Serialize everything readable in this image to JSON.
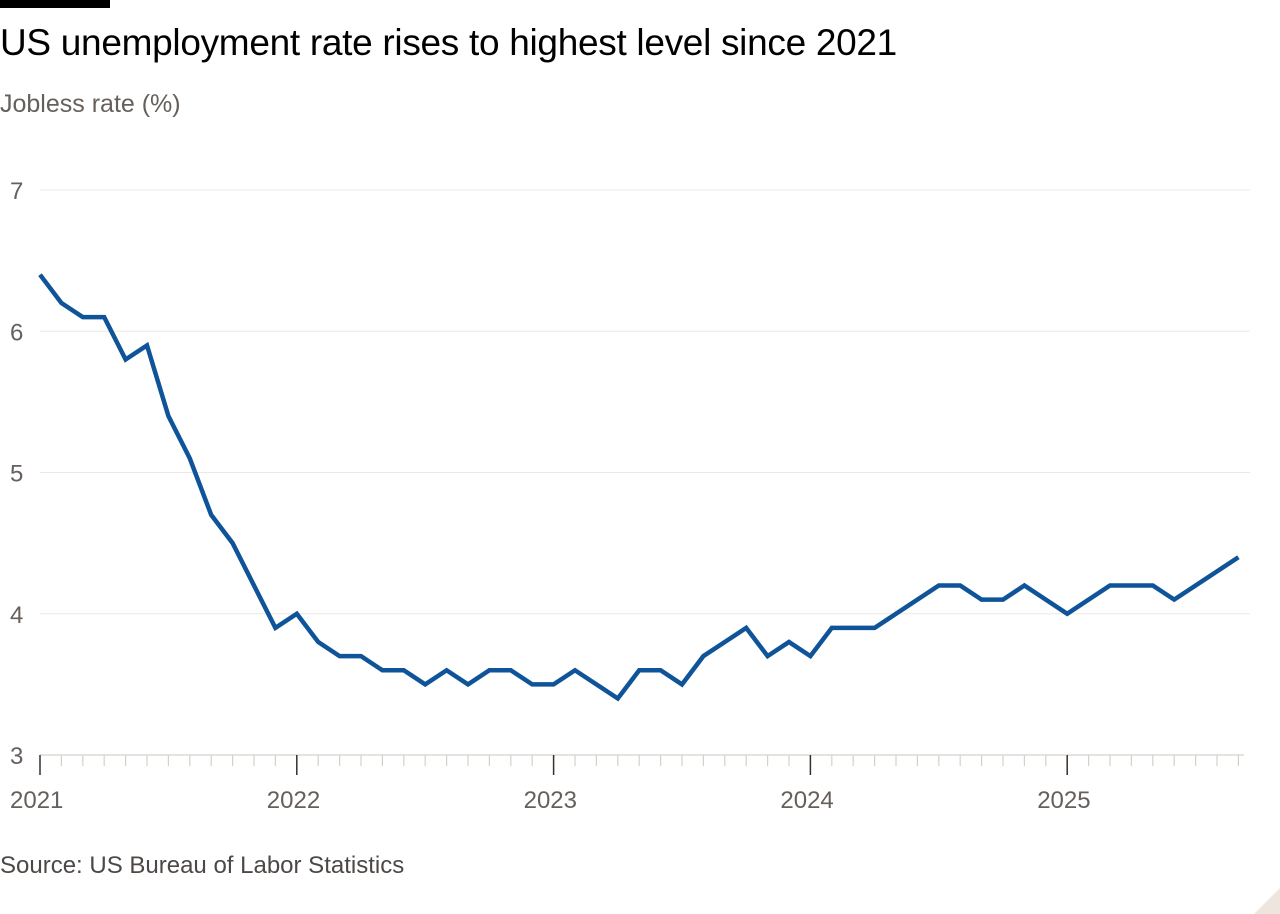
{
  "chart_data": {
    "type": "line",
    "title": "US unemployment rate rises to highest level since 2021",
    "subtitle": "Jobless rate (%)",
    "source": "Source: US Bureau of Labor Statistics",
    "xlabel": "",
    "ylabel": "",
    "ylim": [
      3,
      7
    ],
    "yticks": [
      3,
      4,
      5,
      6,
      7
    ],
    "xlim": [
      "2021-01",
      "2025-08"
    ],
    "xticks": [
      "2021",
      "2022",
      "2023",
      "2024",
      "2025"
    ],
    "grid": true,
    "legend": "none",
    "series": [
      {
        "color": "#0f5499",
        "x": [
          "2021-01",
          "2021-02",
          "2021-03",
          "2021-04",
          "2021-05",
          "2021-06",
          "2021-07",
          "2021-08",
          "2021-09",
          "2021-10",
          "2021-11",
          "2021-12",
          "2022-01",
          "2022-02",
          "2022-03",
          "2022-04",
          "2022-05",
          "2022-06",
          "2022-07",
          "2022-08",
          "2022-09",
          "2022-10",
          "2022-11",
          "2022-12",
          "2023-01",
          "2023-02",
          "2023-03",
          "2023-04",
          "2023-05",
          "2023-06",
          "2023-07",
          "2023-08",
          "2023-09",
          "2023-10",
          "2023-11",
          "2023-12",
          "2024-01",
          "2024-02",
          "2024-03",
          "2024-04",
          "2024-05",
          "2024-06",
          "2024-07",
          "2024-08",
          "2024-09",
          "2024-10",
          "2024-11",
          "2024-12",
          "2025-01",
          "2025-02",
          "2025-03",
          "2025-04",
          "2025-05",
          "2025-06",
          "2025-07",
          "2025-08"
        ],
        "values": [
          6.4,
          6.2,
          6.1,
          6.1,
          5.8,
          5.9,
          5.4,
          5.1,
          4.7,
          4.5,
          4.2,
          3.9,
          4.0,
          3.8,
          3.7,
          3.7,
          3.6,
          3.6,
          3.5,
          3.6,
          3.5,
          3.6,
          3.6,
          3.5,
          3.5,
          3.6,
          3.5,
          3.4,
          3.6,
          3.6,
          3.5,
          3.7,
          3.8,
          3.9,
          3.7,
          3.8,
          3.7,
          3.9,
          3.9,
          3.9,
          4.0,
          4.1,
          4.2,
          4.2,
          4.1,
          4.1,
          4.2,
          4.1,
          4.0,
          4.1,
          4.2,
          4.2,
          4.2,
          4.1,
          4.2,
          4.3
        ]
      }
    ],
    "last_value": 4.4,
    "last_x": "2025-09"
  }
}
